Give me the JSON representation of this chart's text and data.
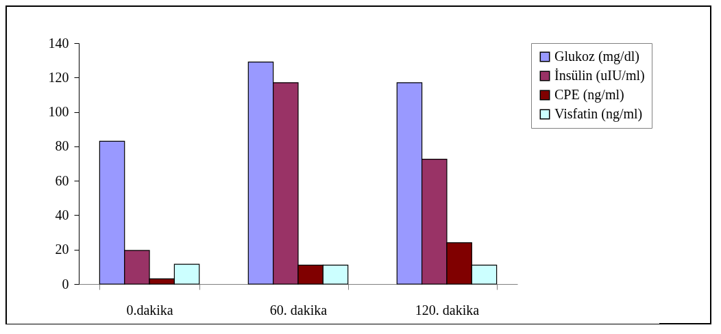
{
  "chart_data": {
    "type": "bar",
    "categories": [
      "0.dakika",
      "60. dakika",
      "120. dakika"
    ],
    "series": [
      {
        "name": "Glukoz (mg/dl)",
        "color": "#9999ff",
        "values": [
          83,
          129,
          117
        ]
      },
      {
        "name": "İnsülin (uIU/ml)",
        "color": "#993366",
        "values": [
          19.5,
          117,
          72.5
        ]
      },
      {
        "name": "CPE (ng/ml)",
        "color": "#800000",
        "values": [
          3,
          11,
          24
        ]
      },
      {
        "name": "Visfatin (ng/ml)",
        "color": "#ccffff",
        "values": [
          11.5,
          11,
          11
        ]
      }
    ],
    "ylim": [
      0,
      140
    ],
    "yticks": [
      0,
      20,
      40,
      60,
      80,
      100,
      120,
      140
    ],
    "grid": false,
    "legend": "right"
  }
}
